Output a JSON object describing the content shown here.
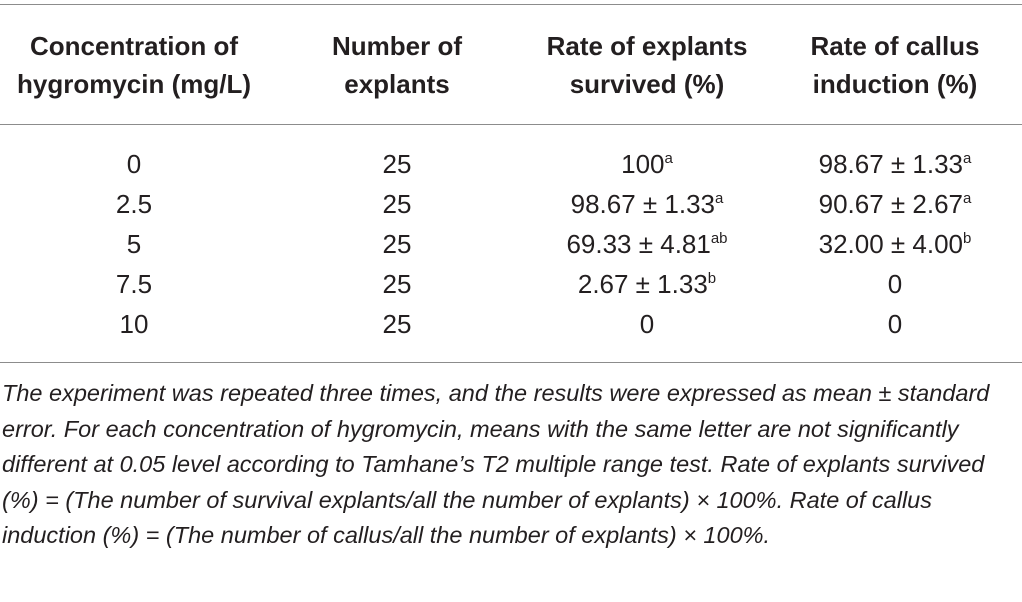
{
  "table": {
    "headers": [
      {
        "line1": "Concentration of",
        "line2": "hygromycin (mg/L)"
      },
      {
        "line1": "Number of",
        "line2": "explants"
      },
      {
        "line1": "Rate of explants",
        "line2": "survived (%)"
      },
      {
        "line1": "Rate of callus",
        "line2": "induction (%)"
      }
    ],
    "rows": [
      {
        "conc": "0",
        "num": "25",
        "surv": "100",
        "surv_sup": "a",
        "callus": "98.67 ± 1.33",
        "callus_sup": "a"
      },
      {
        "conc": "2.5",
        "num": "25",
        "surv": "98.67 ± 1.33",
        "surv_sup": "a",
        "callus": "90.67 ± 2.67",
        "callus_sup": "a"
      },
      {
        "conc": "5",
        "num": "25",
        "surv": "69.33 ± 4.81",
        "surv_sup": "ab",
        "callus": "32.00 ± 4.00",
        "callus_sup": "b"
      },
      {
        "conc": "7.5",
        "num": "25",
        "surv": "2.67 ± 1.33",
        "surv_sup": "b",
        "callus": "0",
        "callus_sup": ""
      },
      {
        "conc": "10",
        "num": "25",
        "surv": "0",
        "surv_sup": "",
        "callus": "0",
        "callus_sup": ""
      }
    ]
  },
  "footnote": "The experiment was repeated three times, and the results were expressed as mean ± standard error. For each concentration of hygromycin, means with the same letter are not significantly different at 0.05 level according to Tamhane’s T2 multiple range test. Rate of explants survived (%) = (The number of survival explants/all the number of explants) × 100%. Rate of callus induction (%) = (The number of callus/all the number of explants) × 100%."
}
